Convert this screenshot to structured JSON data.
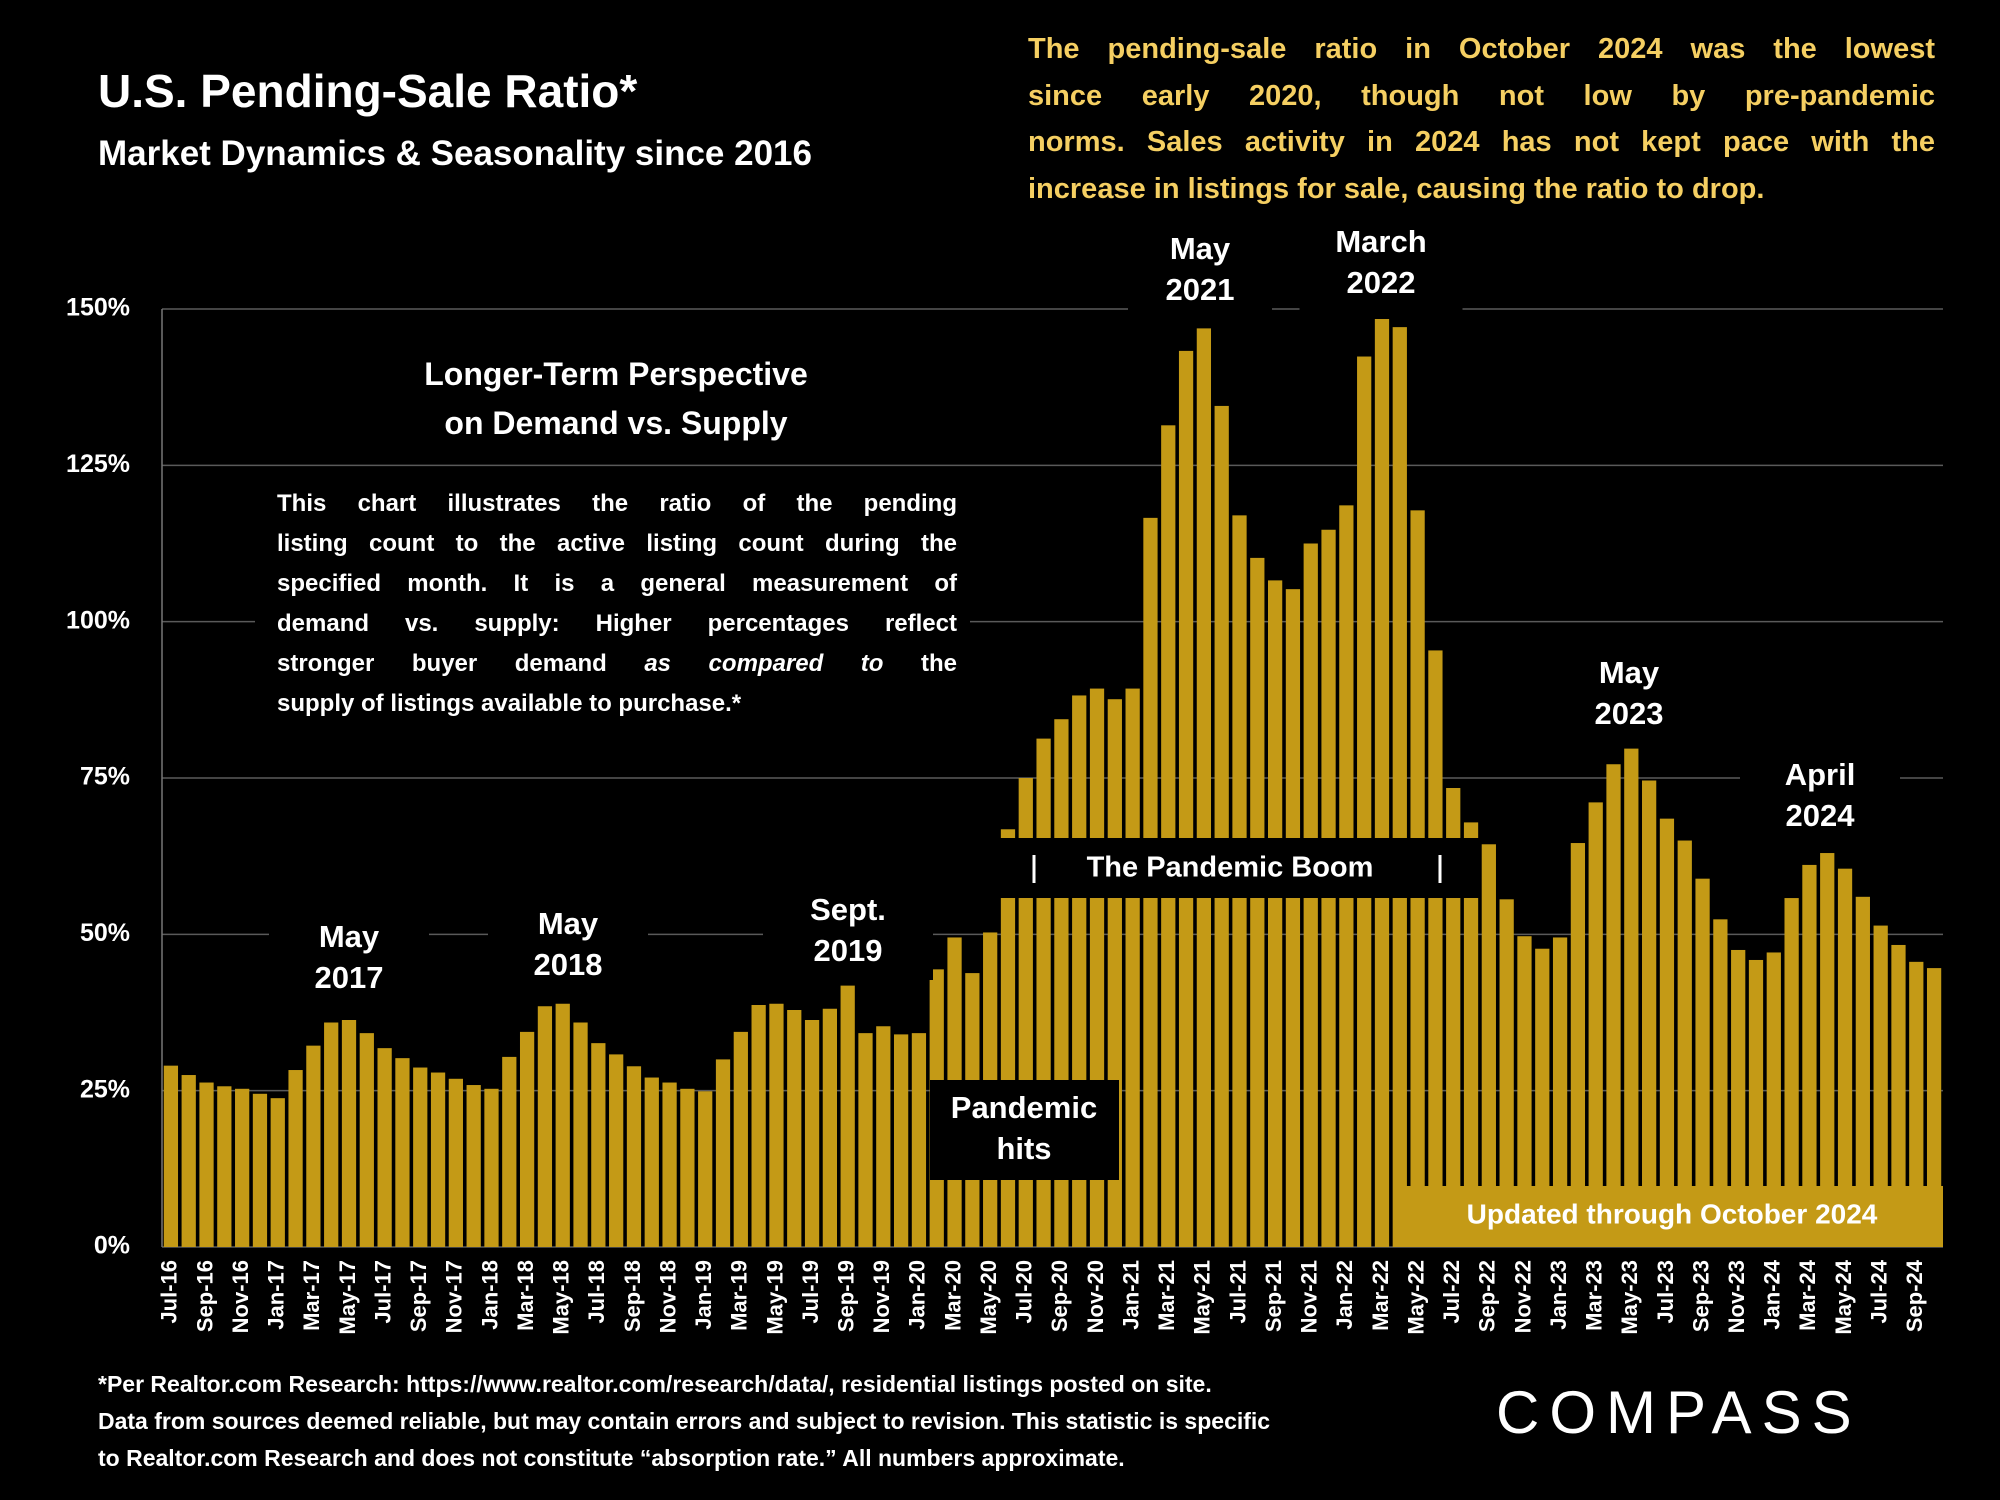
{
  "chart_data": {
    "type": "bar",
    "title": "U.S. Pending-Sale Ratio*",
    "subtitle": "Market Dynamics & Seasonality since 2016",
    "commentary_lines": [
      "The pending-sale ratio in October 2024 was the lowest",
      "since early 2020, though not low by pre-pandemic",
      "norms. Sales activity in 2024 has not kept pace with the",
      "increase in listings for sale, causing the ratio to drop."
    ],
    "inset_title_lines": [
      "Longer-Term Perspective",
      "on Demand vs. Supply"
    ],
    "description_lines": [
      [
        {
          "text": "This chart illustrates the ratio of the pending"
        }
      ],
      [
        {
          "text": "listing count to the active listing count during the"
        }
      ],
      [
        {
          "text": "specified month. It is a general measurement of"
        }
      ],
      [
        {
          "text": "demand vs. supply:  Higher percentages reflect"
        }
      ],
      [
        {
          "text": "stronger buyer demand "
        },
        {
          "text": "as compared to",
          "italic": true
        },
        {
          "text": " the"
        }
      ],
      [
        {
          "text": "supply of listings available to purchase.*"
        }
      ]
    ],
    "annotations": [
      {
        "lines": [
          "May",
          "2017"
        ]
      },
      {
        "lines": [
          "May",
          "2018"
        ]
      },
      {
        "lines": [
          "Sept.",
          "2019"
        ]
      },
      {
        "lines": [
          "May",
          "2021"
        ]
      },
      {
        "lines": [
          "March",
          "2022"
        ]
      },
      {
        "lines": [
          "May",
          "2023"
        ]
      },
      {
        "lines": [
          "April",
          "2024"
        ]
      },
      {
        "lines": [
          "Pandemic",
          "hits"
        ]
      }
    ],
    "period_label": "The Pandemic Boom",
    "update_note": "Updated through October 2024",
    "footnote_lines": [
      "*Per Realtor.com Research:  https://www.realtor.com/research/data/, residential listings posted on site.",
      "Data from sources deemed reliable, but may contain errors and subject to revision. This statistic is specific",
      "to Realtor.com Research and does not constitute “absorption rate.” All numbers approximate."
    ],
    "brand": "COMPASS",
    "categories": [
      "Jul-16",
      null,
      "Sep-16",
      null,
      "Nov-16",
      null,
      "Jan-17",
      null,
      "Mar-17",
      null,
      "May-17",
      null,
      "Jul-17",
      null,
      "Sep-17",
      null,
      "Nov-17",
      null,
      "Jan-18",
      null,
      "Mar-18",
      null,
      "May-18",
      null,
      "Jul-18",
      null,
      "Sep-18",
      null,
      "Nov-18",
      null,
      "Jan-19",
      null,
      "Mar-19",
      null,
      "May-19",
      null,
      "Jul-19",
      null,
      "Sep-19",
      null,
      "Nov-19",
      null,
      "Jan-20",
      null,
      "Mar-20",
      null,
      "May-20",
      null,
      "Jul-20",
      null,
      "Sep-20",
      null,
      "Nov-20",
      null,
      "Jan-21",
      null,
      "Mar-21",
      null,
      "May-21",
      null,
      "Jul-21",
      null,
      "Sep-21",
      null,
      "Nov-21",
      null,
      "Jan-22",
      null,
      "Mar-22",
      null,
      "May-22",
      null,
      "Jul-22",
      null,
      "Sep-22",
      null,
      "Nov-22",
      null,
      "Jan-23",
      null,
      "Mar-23",
      null,
      "May-23",
      null,
      "Jul-23",
      null,
      "Sep-23",
      null,
      "Nov-23",
      null,
      "Jan-24",
      null,
      "Mar-24",
      null,
      "May-24",
      null,
      "Jul-24",
      null,
      "Sep-24",
      null
    ],
    "values": [
      29,
      27.5,
      26.3,
      25.7,
      25.3,
      24.5,
      23.8,
      28.3,
      32.2,
      35.9,
      36.3,
      34.2,
      31.8,
      30.2,
      28.7,
      27.9,
      26.9,
      25.9,
      25.3,
      30.4,
      34.4,
      38.5,
      38.9,
      35.9,
      32.6,
      30.8,
      28.9,
      27.1,
      26.3,
      25.3,
      24.9,
      30,
      34.4,
      38.7,
      38.9,
      37.9,
      36.3,
      38.1,
      41.8,
      34.2,
      35.3,
      34,
      34.2,
      44.4,
      49.5,
      43.8,
      50.3,
      66.8,
      75,
      81.3,
      84.4,
      88.2,
      89.3,
      87.6,
      89.3,
      116.6,
      131.4,
      143.3,
      146.9,
      134.5,
      117,
      110.2,
      106.6,
      105.2,
      112.5,
      114.7,
      118.6,
      142.4,
      148.4,
      147.1,
      117.8,
      95.4,
      73.4,
      67.9,
      64.4,
      55.6,
      49.7,
      47.7,
      49.5,
      64.6,
      71.1,
      77.2,
      79.7,
      74.6,
      68.5,
      65,
      58.9,
      52.4,
      47.5,
      45.9,
      47.1,
      55.8,
      61.1,
      63,
      60.5,
      56,
      51.4,
      48.3,
      45.6,
      44.6
    ],
    "color": "#c49a16",
    "ylim": [
      0,
      150
    ],
    "yticks": [
      {
        "value": 0,
        "label": "0%"
      },
      {
        "value": 25,
        "label": "25%"
      },
      {
        "value": 50,
        "label": "50%"
      },
      {
        "value": 75,
        "label": "75%"
      },
      {
        "value": 100,
        "label": "100%"
      },
      {
        "value": 125,
        "label": "125%"
      },
      {
        "value": 150,
        "label": "150%"
      }
    ],
    "grid": true
  }
}
